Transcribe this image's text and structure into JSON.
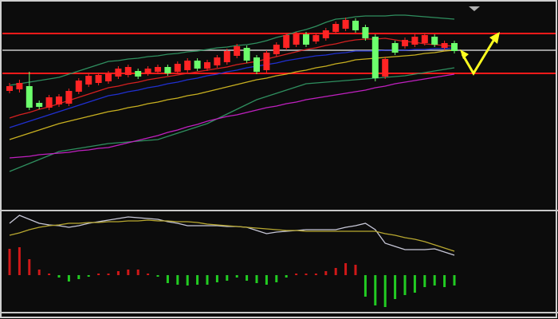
{
  "chart_data": [
    {
      "type": "candlestick",
      "categories": [
        null,
        null,
        null,
        null,
        null,
        null,
        null,
        null,
        null,
        null,
        null,
        null,
        null,
        null,
        null,
        null,
        null,
        null,
        null,
        null,
        null,
        null,
        null,
        null,
        null,
        null,
        null,
        null,
        null,
        null,
        null,
        null,
        null,
        null,
        null,
        null,
        null,
        null,
        null,
        null,
        null,
        null,
        null,
        null,
        null,
        null
      ],
      "open": [
        148,
        150,
        154,
        133,
        127,
        131,
        132,
        147,
        156,
        158,
        160,
        166,
        168,
        173,
        170,
        172,
        178,
        172,
        174,
        186,
        176,
        180,
        184,
        192,
        202,
        190,
        174,
        194,
        202,
        206,
        219,
        210,
        214,
        222,
        226,
        236,
        228,
        216,
        166,
        208,
        204,
        206,
        208,
        216,
        202,
        208
      ],
      "high": [
        158,
        162,
        172,
        136,
        143,
        144,
        151,
        164,
        170,
        171,
        173,
        179,
        181,
        176,
        179,
        181,
        181,
        185,
        189,
        189,
        187,
        193,
        201,
        207,
        205,
        193,
        199,
        209,
        221,
        222,
        222,
        221,
        227,
        235,
        240,
        239,
        231,
        219,
        191,
        211,
        215,
        219,
        221,
        219,
        211,
        211
      ],
      "low": [
        145,
        146,
        124,
        125,
        124,
        128,
        129,
        144,
        153,
        155,
        157,
        163,
        165,
        163,
        167,
        169,
        167,
        169,
        171,
        173,
        173,
        177,
        181,
        189,
        183,
        169,
        171,
        191,
        199,
        203,
        203,
        207,
        211,
        219,
        223,
        221,
        211,
        160,
        163,
        193,
        201,
        203,
        205,
        203,
        199,
        195
      ],
      "close": [
        154,
        158,
        127,
        128,
        140,
        141,
        148,
        161,
        167,
        168,
        170,
        176,
        178,
        166,
        176,
        178,
        170,
        182,
        186,
        176,
        184,
        190,
        198,
        204,
        186,
        172,
        196,
        206,
        218,
        219,
        206,
        218,
        224,
        232,
        237,
        224,
        214,
        164,
        188,
        196,
        212,
        216,
        218,
        206,
        208,
        198
      ],
      "up_color": "#ff2424",
      "down_color": "#6cff6c",
      "ylim": [
        0,
        260
      ],
      "series": [
        {
          "color": "#2f8f5f",
          "values": [
            155,
            157,
            159,
            161,
            163,
            165,
            169,
            173,
            177,
            181,
            185,
            186,
            188,
            189,
            191,
            192,
            194,
            195,
            197,
            198,
            200,
            202,
            203,
            205,
            206,
            208,
            211,
            215,
            218,
            222,
            225,
            229,
            234,
            238,
            239,
            241,
            242,
            242,
            242,
            243,
            243,
            242,
            241,
            240,
            239,
            238
          ]
        },
        {
          "color": "#2f8f5f",
          "values": [
            47,
            52,
            57,
            62,
            67,
            72,
            74,
            76,
            78,
            80,
            82,
            83,
            84,
            85,
            86,
            87,
            91,
            95,
            99,
            103,
            107,
            113,
            119,
            125,
            131,
            137,
            141,
            145,
            149,
            153,
            157,
            158,
            159,
            160,
            161,
            162,
            163,
            164,
            165,
            166,
            167,
            169,
            171,
            173,
            175,
            177
          ]
        },
        {
          "color": "#d42020",
          "values": [
            114,
            118,
            121,
            125,
            128,
            132,
            136,
            140,
            144,
            148,
            152,
            154,
            157,
            159,
            162,
            164,
            166,
            168,
            170,
            172,
            174,
            176,
            178,
            181,
            183,
            185,
            188,
            191,
            194,
            197,
            200,
            202,
            205,
            207,
            210,
            212,
            213,
            213,
            214,
            212,
            210,
            209,
            207,
            206,
            205,
            204
          ]
        },
        {
          "color": "#2030d0",
          "values": [
            102,
            106,
            110,
            114,
            118,
            122,
            126,
            130,
            134,
            138,
            142,
            144,
            147,
            149,
            152,
            154,
            157,
            159,
            162,
            164,
            167,
            169,
            172,
            174,
            177,
            179,
            181,
            183,
            186,
            188,
            190,
            192,
            193,
            195,
            196,
            198,
            198,
            198,
            199,
            199,
            199,
            200,
            200,
            201,
            201,
            202
          ]
        },
        {
          "color": "#c8b020",
          "values": [
            87,
            91,
            95,
            99,
            103,
            107,
            110,
            113,
            116,
            119,
            122,
            124,
            127,
            129,
            132,
            134,
            137,
            139,
            142,
            144,
            147,
            150,
            153,
            156,
            159,
            162,
            164,
            167,
            169,
            172,
            174,
            177,
            179,
            182,
            184,
            187,
            188,
            189,
            190,
            191,
            192,
            193,
            195,
            196,
            198,
            199
          ]
        },
        {
          "color": "#c020c0",
          "values": [
            64,
            65,
            66,
            68,
            69,
            70,
            71,
            73,
            74,
            76,
            77,
            80,
            83,
            86,
            89,
            92,
            96,
            99,
            103,
            106,
            110,
            113,
            116,
            118,
            121,
            124,
            127,
            129,
            132,
            134,
            137,
            139,
            141,
            143,
            145,
            147,
            149,
            152,
            154,
            157,
            159,
            161,
            163,
            165,
            167,
            169
          ]
        }
      ],
      "hlines": [
        {
          "value": 220,
          "color": "#ff1a1a"
        },
        {
          "value": 170,
          "color": "#ff1a1a"
        },
        {
          "value": 199,
          "color": "#9a9a9a"
        }
      ]
    },
    {
      "type": "macd",
      "values": [
        33,
        35,
        20,
        7,
        2,
        -3,
        -8,
        -5,
        -2,
        2,
        2,
        5,
        7,
        7,
        2,
        -2,
        -10,
        -12,
        -13,
        -12,
        -12,
        -9,
        -7,
        -3,
        -7,
        -10,
        -12,
        -9,
        -3,
        2,
        2,
        2,
        5,
        9,
        15,
        13,
        -27,
        -38,
        -40,
        -30,
        -25,
        -22,
        -15,
        -13,
        -15,
        -13
      ],
      "up_color": "#d01818",
      "down_color": "#22cc22",
      "ylim": [
        -47,
        80
      ],
      "series": [
        {
          "color": "#c8c8d8",
          "values": [
            65,
            75,
            70,
            65,
            63,
            62,
            60,
            62,
            65,
            67,
            69,
            71,
            73,
            72,
            71,
            70,
            67,
            65,
            62,
            62,
            62,
            62,
            61,
            61,
            60,
            56,
            52,
            54,
            55,
            56,
            57,
            57,
            57,
            57,
            60,
            62,
            65,
            57,
            40,
            36,
            32,
            32,
            32,
            33,
            29,
            25
          ]
        },
        {
          "color": "#b8a830",
          "values": [
            50,
            53,
            57,
            60,
            62,
            63,
            65,
            65,
            66,
            66,
            67,
            67,
            68,
            68,
            69,
            68,
            68,
            67,
            67,
            66,
            64,
            63,
            62,
            61,
            60,
            59,
            58,
            57,
            56,
            56,
            55,
            55,
            55,
            55,
            55,
            55,
            55,
            55,
            52,
            50,
            47,
            45,
            42,
            38,
            34,
            30
          ]
        }
      ]
    }
  ]
}
